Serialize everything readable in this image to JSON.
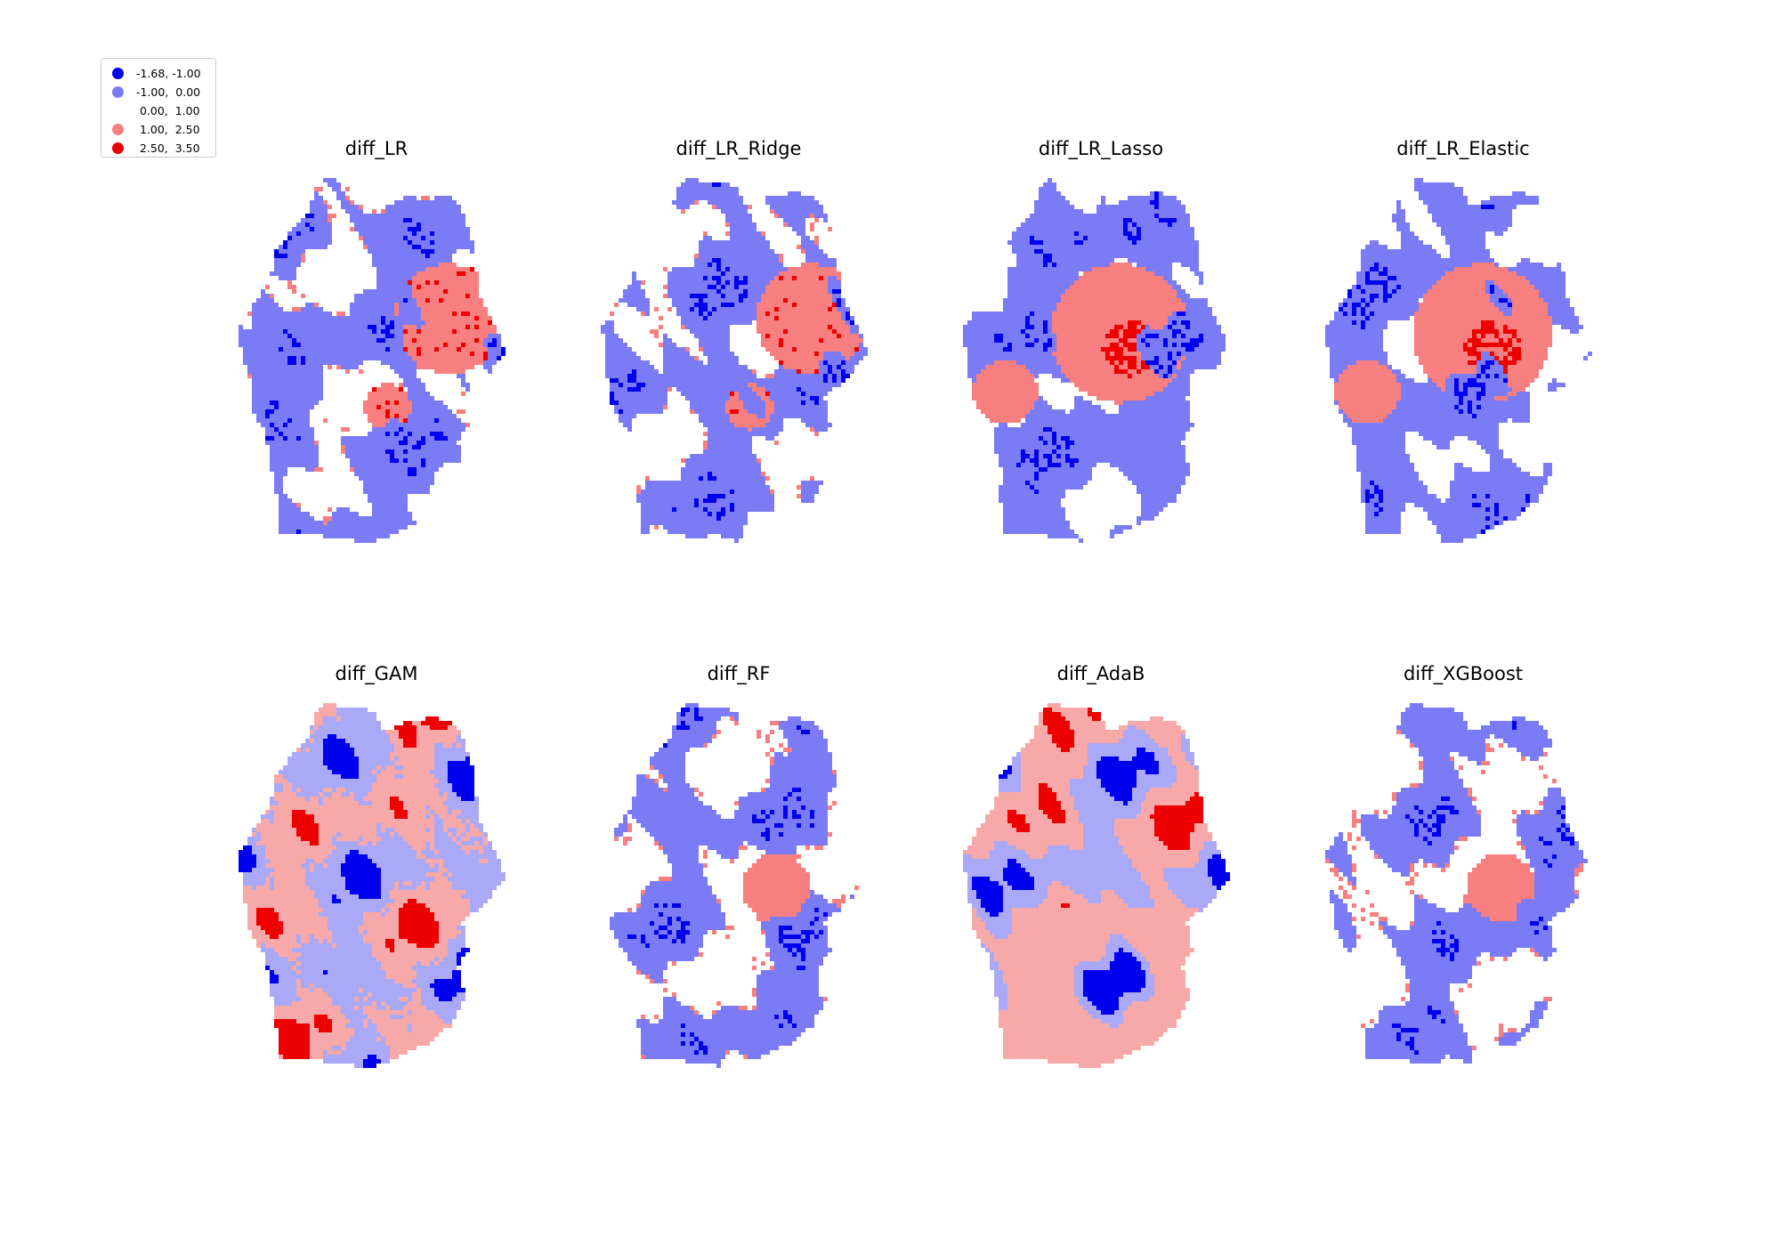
{
  "legend": {
    "items": [
      {
        "label": "-1.68, -1.00",
        "color": "#0000ee",
        "range": [
          -1.68,
          -1.0
        ]
      },
      {
        "label": "-1.00,  0.00",
        "color": "#7b7bf6",
        "range": [
          -1.0,
          0.0
        ]
      },
      {
        "label": " 0.00,  1.00",
        "color": "#ffffff",
        "range": [
          0.0,
          1.0
        ]
      },
      {
        "label": " 1.00,  2.50",
        "color": "#f87f7f",
        "range": [
          1.0,
          2.5
        ]
      },
      {
        "label": " 2.50,  3.50",
        "color": "#ee0000",
        "range": [
          2.5,
          3.5
        ]
      }
    ]
  },
  "maps": [
    {
      "title": "diff_LR",
      "pattern": "LR"
    },
    {
      "title": "diff_LR_Ridge",
      "pattern": "LR"
    },
    {
      "title": "diff_LR_Lasso",
      "pattern": "Lasso"
    },
    {
      "title": "diff_LR_Elastic",
      "pattern": "Lasso"
    },
    {
      "title": "diff_GAM",
      "pattern": "GAM"
    },
    {
      "title": "diff_RF",
      "pattern": "RF"
    },
    {
      "title": "diff_AdaB",
      "pattern": "AdaB"
    },
    {
      "title": "diff_XGBoost",
      "pattern": "RF"
    }
  ],
  "colors": {
    "light_blue_alt": "#a9a9f7",
    "light_red_alt": "#f7a9a9"
  }
}
